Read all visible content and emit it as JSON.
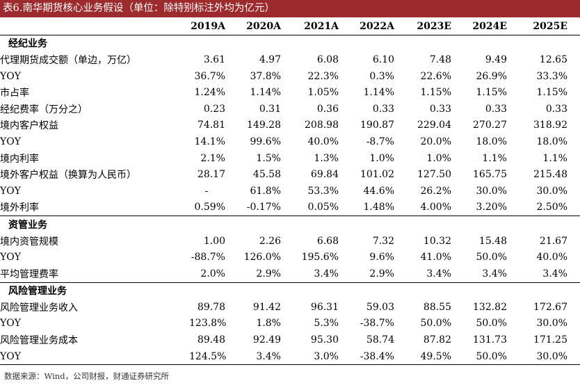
{
  "title": "表6.南华期货核心业务假设（单位：除特别标注外均为亿元）",
  "columns": [
    "2019A",
    "2020A",
    "2021A",
    "2022A",
    "2023E",
    "2024E",
    "2025E"
  ],
  "sections": [
    {
      "name": "经纪业务",
      "rows": [
        {
          "label": "代理期货成交额（单边，万亿）",
          "values": [
            "3.61",
            "4.97",
            "6.08",
            "6.10",
            "7.48",
            "9.49",
            "12.65"
          ]
        },
        {
          "label": "YOY",
          "values": [
            "36.7%",
            "37.8%",
            "22.3%",
            "0.3%",
            "22.6%",
            "26.9%",
            "33.3%"
          ]
        },
        {
          "label": "市占率",
          "values": [
            "1.24%",
            "1.14%",
            "1.05%",
            "1.14%",
            "1.15%",
            "1.15%",
            "1.15%"
          ]
        },
        {
          "label": "经纪费率（万分之）",
          "values": [
            "0.23",
            "0.31",
            "0.36",
            "0.33",
            "0.33",
            "0.33",
            "0.33"
          ]
        },
        {
          "label": "境内客户权益",
          "values": [
            "74.81",
            "149.28",
            "208.98",
            "190.87",
            "229.04",
            "270.27",
            "318.92"
          ]
        },
        {
          "label": "YOY",
          "values": [
            "14.1%",
            "99.6%",
            "40.0%",
            "-8.7%",
            "20.0%",
            "18.0%",
            "18.0%"
          ]
        },
        {
          "label": "境内利率",
          "values": [
            "2.1%",
            "1.5%",
            "1.3%",
            "1.0%",
            "1.0%",
            "1.1%",
            "1.1%"
          ]
        },
        {
          "label": "境外客户权益（换算为人民币）",
          "values": [
            "28.17",
            "45.58",
            "69.84",
            "101.02",
            "127.50",
            "165.75",
            "215.48"
          ]
        },
        {
          "label": "YOY",
          "values": [
            "-",
            "61.8%",
            "53.3%",
            "44.6%",
            "26.2%",
            "30.0%",
            "30.0%"
          ]
        },
        {
          "label": "境外利率",
          "values": [
            "0.59%",
            "-0.17%",
            "0.05%",
            "1.48%",
            "4.00%",
            "3.20%",
            "2.50%"
          ]
        }
      ]
    },
    {
      "name": "资管业务",
      "rows": [
        {
          "label": "境内资管规模",
          "values": [
            "1.00",
            "2.26",
            "6.68",
            "7.32",
            "10.32",
            "15.48",
            "21.67"
          ]
        },
        {
          "label": "YOY",
          "values": [
            "-88.7%",
            "126.0%",
            "195.6%",
            "9.6%",
            "41.0%",
            "50.0%",
            "40.0%"
          ]
        },
        {
          "label": "平均管理费率",
          "values": [
            "2.0%",
            "2.9%",
            "3.4%",
            "2.9%",
            "3.4%",
            "3.4%",
            "3.4%"
          ]
        }
      ]
    },
    {
      "name": "风险管理业务",
      "rows": [
        {
          "label": "风险管理业务收入",
          "values": [
            "89.78",
            "91.42",
            "96.31",
            "59.03",
            "88.55",
            "132.82",
            "172.67"
          ]
        },
        {
          "label": "YOY",
          "values": [
            "123.8%",
            "1.8%",
            "5.3%",
            "-38.7%",
            "50.0%",
            "50.0%",
            "30.0%"
          ]
        },
        {
          "label": "风险管理业务成本",
          "values": [
            "89.48",
            "92.49",
            "95.30",
            "58.74",
            "87.82",
            "131.73",
            "171.25"
          ]
        },
        {
          "label": "YOY",
          "values": [
            "124.5%",
            "3.4%",
            "3.0%",
            "-38.4%",
            "49.5%",
            "50.0%",
            "30.0%"
          ]
        }
      ]
    }
  ],
  "source": "数据来源：Wind，公司财报，财通证券研究所",
  "colors": {
    "title_bar": "#9d2a2c",
    "title_text": "#ffffff"
  }
}
